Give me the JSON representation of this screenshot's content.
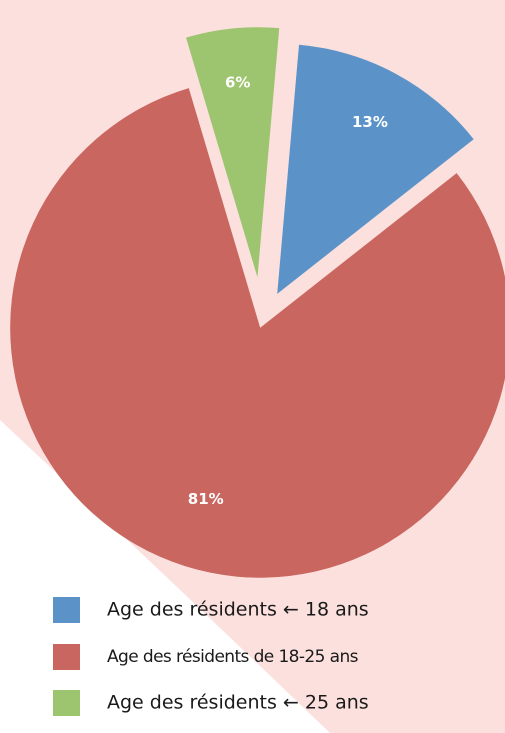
{
  "chart_data": {
    "type": "pie",
    "categories": [
      "Age des résidents ← 18 ans",
      "Age des résidents de 18-25 ans",
      "Age des résidents ← 25 ans"
    ],
    "values": [
      13,
      81,
      6
    ],
    "value_labels": [
      "13%",
      "81%",
      "6%"
    ],
    "colors": [
      "#5b93c9",
      "#c9665f",
      "#9dc46f"
    ]
  }
}
